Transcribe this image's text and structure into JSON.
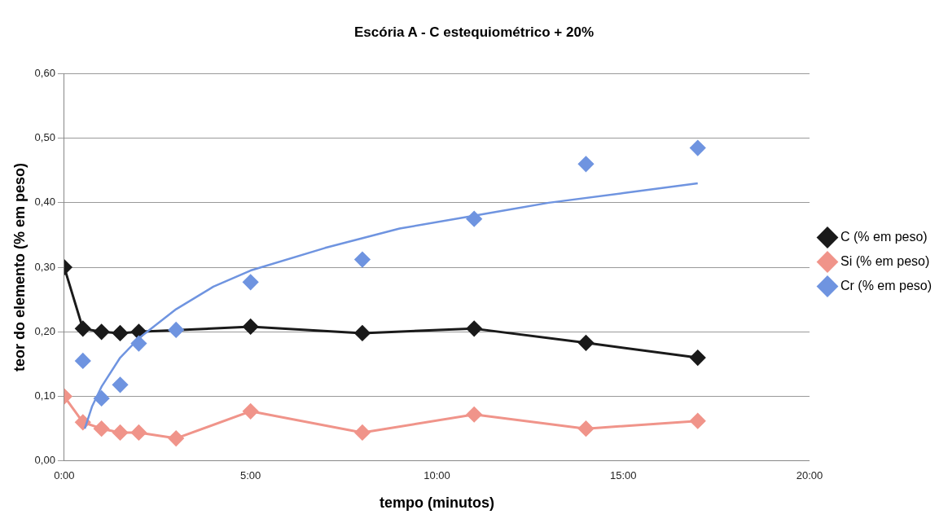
{
  "chart_data": {
    "type": "line",
    "title": "Escória A - C estequiométrico + 20%",
    "xlabel": "tempo (minutos)",
    "ylabel": "teor do elemento (% em peso)",
    "x": [
      0,
      0.5,
      1,
      1.5,
      2,
      3,
      5,
      8,
      11,
      14,
      17
    ],
    "series": [
      {
        "name": "C (% em peso)",
        "color": "#1a1a1a",
        "x": [
          0,
          0.5,
          1,
          1.5,
          2,
          5,
          8,
          11,
          14,
          17
        ],
        "values": [
          0.3,
          0.205,
          0.2,
          0.198,
          0.2,
          0.208,
          0.198,
          0.205,
          0.183,
          0.16
        ]
      },
      {
        "name": "Si (% em peso)",
        "color": "#f0948a",
        "values": [
          0.1,
          0.06,
          0.05,
          0.044,
          0.044,
          0.035,
          0.077,
          0.044,
          0.072,
          0.05,
          0.062
        ]
      },
      {
        "name": "Cr (% em peso)",
        "type": "scatter",
        "color": "#6f94e0",
        "values": [
          null,
          0.155,
          0.097,
          0.118,
          0.182,
          0.203,
          0.277,
          0.312,
          0.375,
          0.46,
          0.485
        ]
      },
      {
        "type": "line",
        "marker": "none",
        "color": "#6f94e0",
        "x": [
          0.55,
          0.75,
          1,
          1.5,
          2,
          3,
          4,
          5,
          7,
          9,
          11,
          13,
          15,
          17
        ],
        "values": [
          0.05,
          0.085,
          0.115,
          0.16,
          0.19,
          0.235,
          0.27,
          0.295,
          0.33,
          0.36,
          0.38,
          0.4,
          0.415,
          0.43
        ]
      }
    ],
    "xlim": [
      0,
      20
    ],
    "xticks": [
      {
        "value": 0,
        "label": "0:00"
      },
      {
        "value": 5,
        "label": "5:00"
      },
      {
        "value": 10,
        "label": "10:00"
      },
      {
        "value": 15,
        "label": "15:00"
      },
      {
        "value": 20,
        "label": "20:00"
      }
    ],
    "ylim": [
      0,
      0.6
    ],
    "yticks": [
      {
        "value": 0,
        "label": "0,00"
      },
      {
        "value": 0.1,
        "label": "0,10"
      },
      {
        "value": 0.2,
        "label": "0,20"
      },
      {
        "value": 0.3,
        "label": "0,30"
      },
      {
        "value": 0.4,
        "label": "0,40"
      },
      {
        "value": 0.5,
        "label": "0,50"
      },
      {
        "value": 0.6,
        "label": "0,60"
      }
    ],
    "grid": "y",
    "legend": "right",
    "marker": "diamond"
  }
}
